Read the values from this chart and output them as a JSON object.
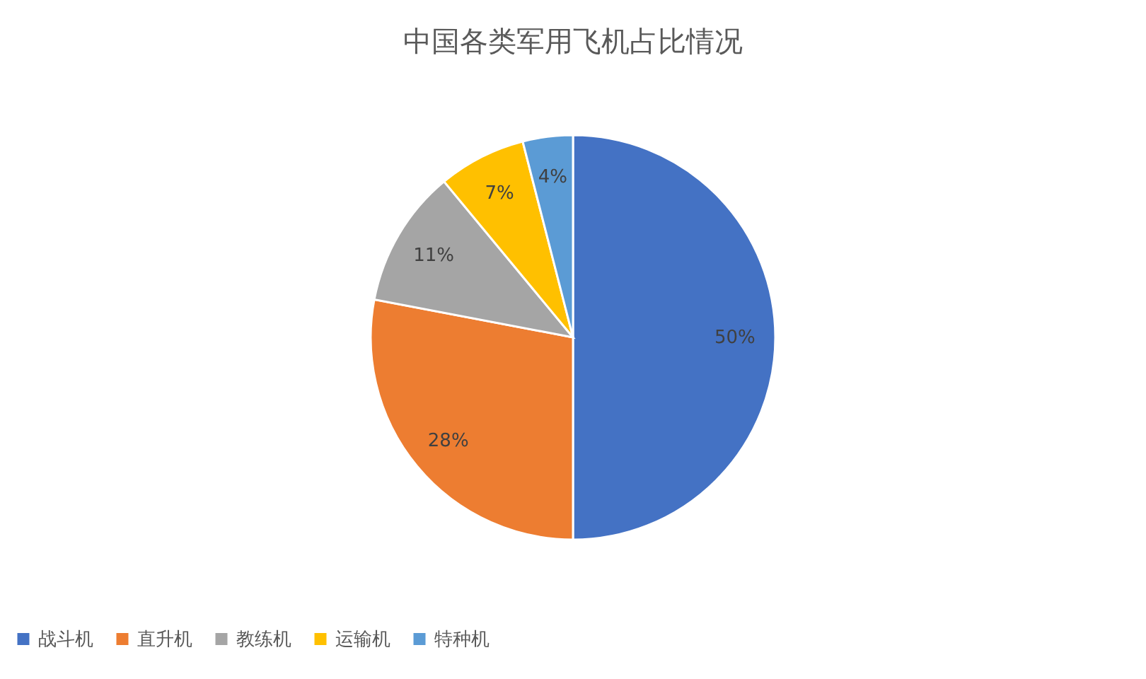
{
  "chart_data": {
    "type": "pie",
    "title": "中国各类军用飞机占比情况",
    "categories": [
      "战斗机",
      "直升机",
      "教练机",
      "运输机",
      "特种机"
    ],
    "values": [
      50,
      28,
      11,
      7,
      4
    ],
    "colors": [
      "#4472c4",
      "#ed7d31",
      "#a5a5a5",
      "#ffc000",
      "#5b9bd5"
    ],
    "value_labels": [
      "50%",
      "28%",
      "11%",
      "7%",
      "4%"
    ],
    "legend": "bottom"
  }
}
